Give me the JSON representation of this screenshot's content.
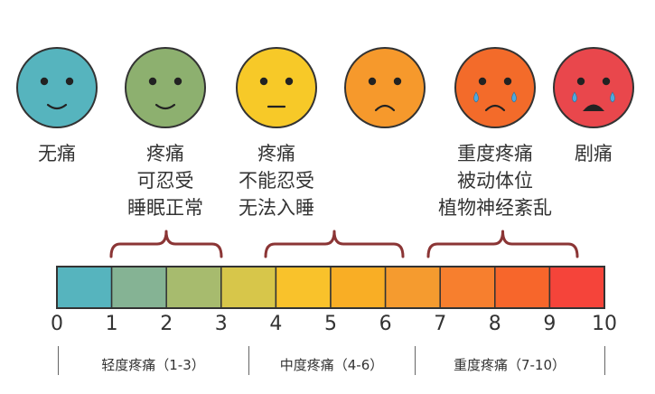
{
  "faces": [
    {
      "label": [
        "无痛"
      ],
      "color": "#56B4BE",
      "mouth": "smile",
      "tears": false
    },
    {
      "label": [
        "疼痛",
        "可忍受",
        "睡眠正常"
      ],
      "color": "#8DB06F",
      "mouth": "smile",
      "tears": false
    },
    {
      "label": [
        "疼痛",
        "不能忍受",
        "无法入睡"
      ],
      "color": "#F7C928",
      "mouth": "flat",
      "tears": false
    },
    {
      "label": [],
      "color": "#F6992C",
      "mouth": "frown",
      "tears": false
    },
    {
      "label": [
        "重度疼痛",
        "被动体位",
        "植物神经紊乱"
      ],
      "color": "#F36B2A",
      "mouth": "frown",
      "tears": true
    },
    {
      "label": [
        "剧痛"
      ],
      "color": "#E9474C",
      "mouth": "open",
      "tears": true
    }
  ],
  "scale": {
    "min": 0,
    "max": 10,
    "ticks": [
      "0",
      "1",
      "2",
      "3",
      "4",
      "5",
      "6",
      "7",
      "8",
      "9",
      "10"
    ],
    "segment_colors": [
      "#56B4BE",
      "#85B394",
      "#A7BB6E",
      "#D7C64A",
      "#F9C22B",
      "#F9AE25",
      "#F59B2F",
      "#F77F2E",
      "#F7662B",
      "#F5443A"
    ]
  },
  "ranges": [
    {
      "label": "轻度疼痛（1-3）",
      "from": 1,
      "to": 3
    },
    {
      "label": "中度疼痛（4-6）",
      "from": 4,
      "to": 6
    },
    {
      "label": "重度疼痛（7-10）",
      "from": 7,
      "to": 10
    }
  ],
  "colors": {
    "brace": "#8B3535",
    "outline": "#333333",
    "text": "#333333"
  }
}
